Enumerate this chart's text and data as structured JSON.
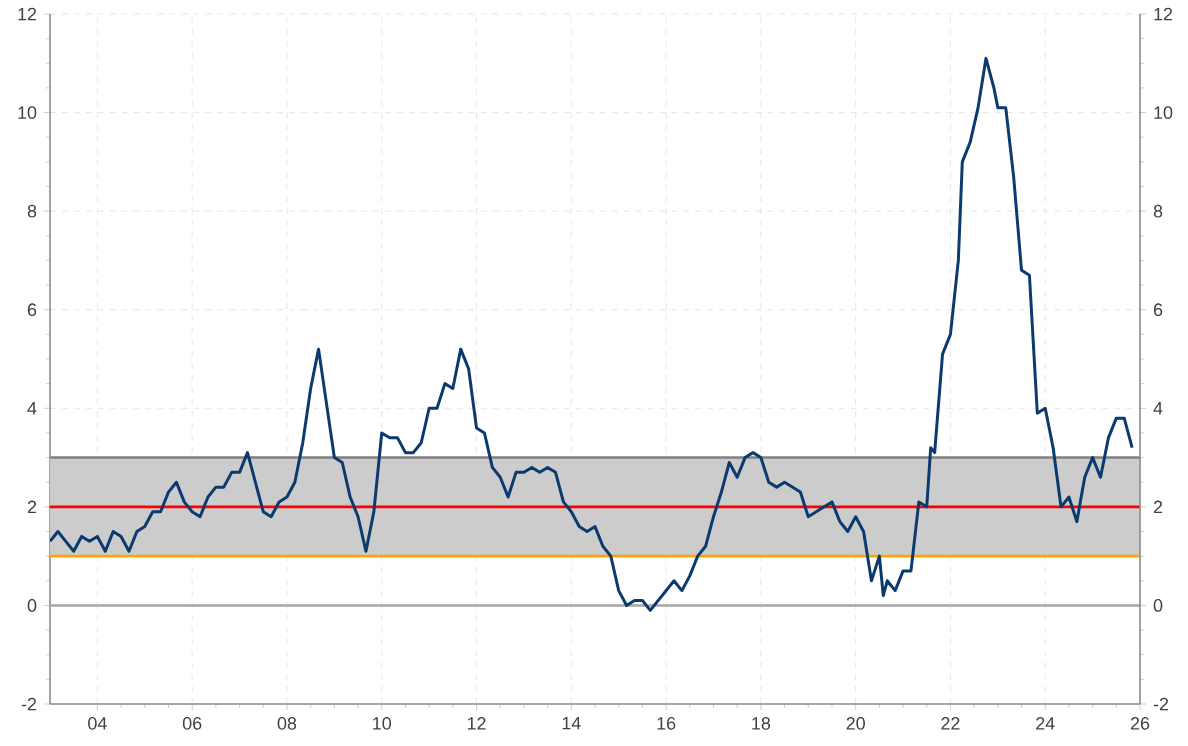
{
  "chart_data": {
    "type": "line",
    "x": [
      "2003-01",
      "2003-03",
      "2003-05",
      "2003-07",
      "2003-09",
      "2003-11",
      "2004-01",
      "2004-03",
      "2004-05",
      "2004-07",
      "2004-09",
      "2004-11",
      "2005-01",
      "2005-03",
      "2005-05",
      "2005-07",
      "2005-09",
      "2005-11",
      "2006-01",
      "2006-03",
      "2006-05",
      "2006-07",
      "2006-09",
      "2006-11",
      "2007-01",
      "2007-03",
      "2007-05",
      "2007-07",
      "2007-09",
      "2007-11",
      "2008-01",
      "2008-03",
      "2008-05",
      "2008-07",
      "2008-09",
      "2008-11",
      "2009-01",
      "2009-03",
      "2009-05",
      "2009-07",
      "2009-09",
      "2009-11",
      "2010-01",
      "2010-03",
      "2010-05",
      "2010-07",
      "2010-09",
      "2010-11",
      "2011-01",
      "2011-03",
      "2011-05",
      "2011-07",
      "2011-09",
      "2011-11",
      "2012-01",
      "2012-03",
      "2012-05",
      "2012-07",
      "2012-09",
      "2012-11",
      "2013-01",
      "2013-03",
      "2013-05",
      "2013-07",
      "2013-09",
      "2013-11",
      "2014-01",
      "2014-03",
      "2014-05",
      "2014-07",
      "2014-09",
      "2014-11",
      "2015-01",
      "2015-03",
      "2015-05",
      "2015-07",
      "2015-09",
      "2015-11",
      "2016-01",
      "2016-03",
      "2016-05",
      "2016-07",
      "2016-09",
      "2016-11",
      "2017-01",
      "2017-03",
      "2017-05",
      "2017-07",
      "2017-09",
      "2017-11",
      "2018-01",
      "2018-03",
      "2018-05",
      "2018-07",
      "2018-09",
      "2018-11",
      "2019-01",
      "2019-03",
      "2019-05",
      "2019-07",
      "2019-09",
      "2019-11",
      "2020-01",
      "2020-03",
      "2020-05",
      "2020-07",
      "2020-08",
      "2020-09",
      "2020-11",
      "2021-01",
      "2021-03",
      "2021-05",
      "2021-07",
      "2021-08",
      "2021-09",
      "2021-11",
      "2022-01",
      "2022-03",
      "2022-04",
      "2022-06",
      "2022-08",
      "2022-10",
      "2022-12",
      "2023-01",
      "2023-03",
      "2023-05",
      "2023-07",
      "2023-09",
      "2023-11",
      "2024-01",
      "2024-03",
      "2024-05",
      "2024-07",
      "2024-09",
      "2024-11",
      "2025-01",
      "2025-03",
      "2025-05",
      "2025-07",
      "2025-09",
      "2025-11"
    ],
    "series": [
      {
        "color": "#0b3a6e",
        "values": [
          1.3,
          1.5,
          1.3,
          1.1,
          1.4,
          1.3,
          1.4,
          1.1,
          1.5,
          1.4,
          1.1,
          1.5,
          1.6,
          1.9,
          1.9,
          2.3,
          2.5,
          2.1,
          1.9,
          1.8,
          2.2,
          2.4,
          2.4,
          2.7,
          2.7,
          3.1,
          2.5,
          1.9,
          1.8,
          2.1,
          2.2,
          2.5,
          3.3,
          4.4,
          5.2,
          4.1,
          3.0,
          2.9,
          2.2,
          1.8,
          1.1,
          1.9,
          3.5,
          3.4,
          3.4,
          3.1,
          3.1,
          3.3,
          4.0,
          4.0,
          4.5,
          4.4,
          5.2,
          4.8,
          3.6,
          3.5,
          2.8,
          2.6,
          2.2,
          2.7,
          2.7,
          2.8,
          2.7,
          2.8,
          2.7,
          2.1,
          1.9,
          1.6,
          1.5,
          1.6,
          1.2,
          1.0,
          0.3,
          0.0,
          0.1,
          0.1,
          -0.1,
          0.1,
          0.3,
          0.5,
          0.3,
          0.6,
          1.0,
          1.2,
          1.8,
          2.3,
          2.9,
          2.6,
          3.0,
          3.1,
          3.0,
          2.5,
          2.4,
          2.5,
          2.4,
          2.3,
          1.8,
          1.9,
          2.0,
          2.1,
          1.7,
          1.5,
          1.8,
          1.5,
          0.5,
          1.0,
          0.2,
          0.5,
          0.3,
          0.7,
          0.7,
          2.1,
          2.0,
          3.2,
          3.1,
          5.1,
          5.5,
          7.0,
          9.0,
          9.4,
          10.1,
          11.1,
          10.5,
          10.1,
          10.1,
          8.7,
          6.8,
          6.7,
          3.9,
          4.0,
          3.2,
          2.0,
          2.2,
          1.7,
          2.6,
          3.0,
          2.6,
          3.4,
          3.8,
          3.8,
          3.2
        ]
      }
    ],
    "xlim": [
      "2003",
      "2026"
    ],
    "xticks": [
      {
        "value": "2004",
        "label": "04"
      },
      {
        "value": "2006",
        "label": "06"
      },
      {
        "value": "2008",
        "label": "08"
      },
      {
        "value": "2010",
        "label": "10"
      },
      {
        "value": "2012",
        "label": "12"
      },
      {
        "value": "2014",
        "label": "14"
      },
      {
        "value": "2016",
        "label": "16"
      },
      {
        "value": "2018",
        "label": "18"
      },
      {
        "value": "2020",
        "label": "20"
      },
      {
        "value": "2022",
        "label": "22"
      },
      {
        "value": "2024",
        "label": "24"
      },
      {
        "value": "2026",
        "label": "26"
      }
    ],
    "ylim": [
      -2,
      12
    ],
    "yticks": [
      -2,
      0,
      2,
      4,
      6,
      8,
      10,
      12
    ],
    "y2lim": [
      -2,
      12
    ],
    "y2ticks": [
      -2,
      0,
      2,
      4,
      6,
      8,
      10,
      12
    ],
    "bands": [
      {
        "axis": "y",
        "from": 1,
        "to": 3,
        "color": "#cccccc"
      }
    ],
    "ref_lines": [
      {
        "axis": "y",
        "value": 0,
        "color": "#a6a6a6"
      },
      {
        "axis": "y",
        "value": 1,
        "color": "#ffa500"
      },
      {
        "axis": "y",
        "value": 2,
        "color": "#ff0000"
      },
      {
        "axis": "y",
        "value": 3,
        "color": "#808080"
      }
    ],
    "grid": true,
    "marker": "none",
    "line_style": "solid"
  }
}
